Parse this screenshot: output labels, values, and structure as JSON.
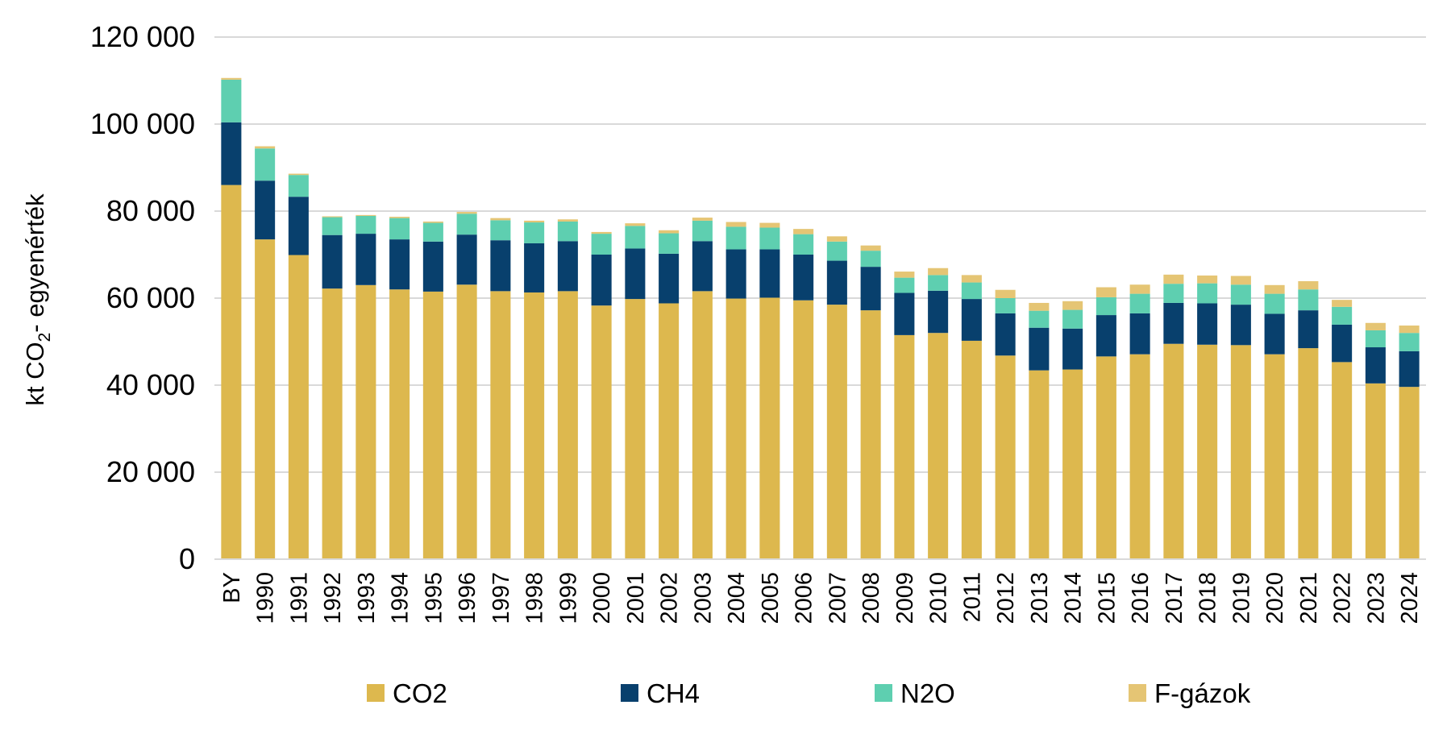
{
  "chart_data": {
    "type": "bar",
    "stacked": true,
    "title": "",
    "xlabel": "",
    "ylabel": "kt CO2- egyenérték",
    "ylabel_parts": {
      "pre": "kt CO",
      "sub": "2",
      "post": "- egyenérték"
    },
    "ylim": [
      0,
      120000
    ],
    "yticks": [
      0,
      20000,
      40000,
      60000,
      80000,
      100000,
      120000
    ],
    "ytick_labels": [
      "0",
      "20 000",
      "40 000",
      "60 000",
      "80 000",
      "100 000",
      "120 000"
    ],
    "grid": true,
    "legend_position": "bottom",
    "categories": [
      "BY",
      "1990",
      "1991",
      "1992",
      "1993",
      "1994",
      "1995",
      "1996",
      "1997",
      "1998",
      "1999",
      "2000",
      "2001",
      "2002",
      "2003",
      "2004",
      "2005",
      "2006",
      "2007",
      "2008",
      "2009",
      "2010",
      "2011",
      "2012",
      "2013",
      "2014",
      "2015",
      "2016",
      "2017",
      "2018",
      "2019",
      "2020",
      "2021",
      "2022",
      "2023",
      "2024"
    ],
    "series": [
      {
        "name": "CO2",
        "color": "#DDB84E",
        "values": [
          86000,
          73500,
          69900,
          62200,
          63000,
          62000,
          61500,
          63100,
          61600,
          61300,
          61600,
          58300,
          59800,
          58800,
          61600,
          59900,
          60100,
          59500,
          58500,
          57200,
          51500,
          52000,
          50200,
          46800,
          43400,
          43600,
          46600,
          47100,
          49500,
          49300,
          49200,
          47100,
          48500,
          45300,
          40400,
          39600
        ]
      },
      {
        "name": "CH4",
        "color": "#08406D",
        "values": [
          14400,
          13500,
          13400,
          12300,
          11800,
          11500,
          11500,
          11500,
          11700,
          11300,
          11500,
          11700,
          11600,
          11400,
          11500,
          11300,
          11100,
          10500,
          10100,
          10000,
          9700,
          9700,
          9600,
          9700,
          9800,
          9400,
          9500,
          9400,
          9400,
          9500,
          9300,
          9300,
          8700,
          8600,
          8300,
          8200
        ]
      },
      {
        "name": "N2O",
        "color": "#5ECFB0",
        "values": [
          9800,
          7400,
          5000,
          4100,
          4100,
          4900,
          4300,
          4800,
          4600,
          4800,
          4500,
          4800,
          5200,
          4700,
          4700,
          5200,
          5000,
          4700,
          4400,
          3700,
          3500,
          3600,
          3800,
          3500,
          3900,
          4300,
          4100,
          4500,
          4400,
          4600,
          4600,
          4600,
          4800,
          4100,
          3900,
          4200
        ]
      },
      {
        "name": "F-gázok",
        "color": "#E5C574",
        "values": [
          400,
          500,
          300,
          200,
          200,
          300,
          300,
          400,
          500,
          400,
          500,
          400,
          600,
          700,
          700,
          1100,
          1100,
          1200,
          1200,
          1200,
          1400,
          1600,
          1700,
          1900,
          1800,
          2000,
          2300,
          2100,
          2100,
          1800,
          2000,
          2000,
          1900,
          1600,
          1700,
          1700
        ]
      }
    ]
  }
}
